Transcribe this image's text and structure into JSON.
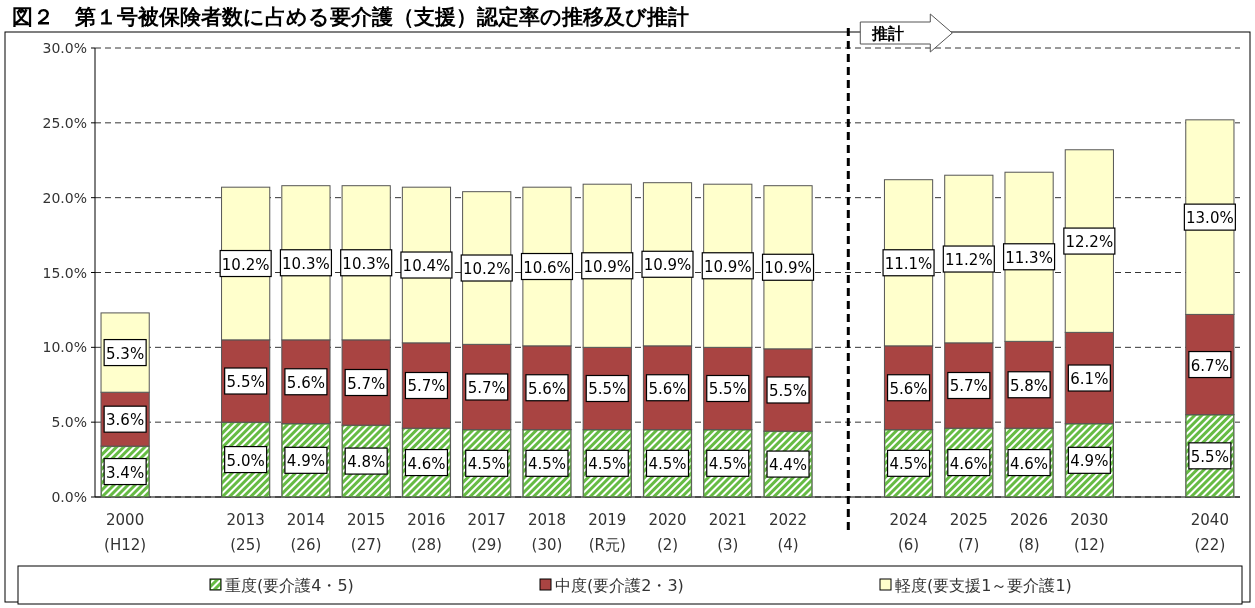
{
  "chart_data": {
    "type": "bar",
    "stacked": true,
    "title": "図２　第１号被保険者数に占める要介護（支援）認定率の推移及び推計",
    "categories": [
      "2000\n(H12)",
      null,
      "2013\n(25)",
      "2014\n(26)",
      "2015\n(27)",
      "2016\n(28)",
      "2017\n(29)",
      "2018\n(30)",
      "2019\n(R元)",
      "2020\n(2)",
      "2021\n(3)",
      "2022\n(4)",
      null,
      "2024\n(6)",
      "2025\n(7)",
      "2026\n(8)",
      "2030\n(12)",
      null,
      "2040\n(22)"
    ],
    "series": [
      {
        "name": "重度(要介護4・5)",
        "color": "#66bb44",
        "values": [
          3.4,
          null,
          5.0,
          4.9,
          4.8,
          4.6,
          4.5,
          4.5,
          4.5,
          4.5,
          4.5,
          4.4,
          null,
          4.5,
          4.6,
          4.6,
          4.9,
          null,
          5.5
        ],
        "value_labels": [
          "3.4%",
          null,
          "5.0%",
          "4.9%",
          "4.8%",
          "4.6%",
          "4.5%",
          "4.5%",
          "4.5%",
          "4.5%",
          "4.5%",
          "4.4%",
          null,
          "4.5%",
          "4.6%",
          "4.6%",
          "4.9%",
          null,
          "5.5%"
        ]
      },
      {
        "name": "中度(要介護2・3)",
        "color": "#a94442",
        "values": [
          3.6,
          null,
          5.5,
          5.6,
          5.7,
          5.7,
          5.7,
          5.6,
          5.5,
          5.6,
          5.5,
          5.5,
          null,
          5.6,
          5.7,
          5.8,
          6.1,
          null,
          6.7
        ],
        "value_labels": [
          "3.6%",
          null,
          "5.5%",
          "5.6%",
          "5.7%",
          "5.7%",
          "5.7%",
          "5.6%",
          "5.5%",
          "5.6%",
          "5.5%",
          "5.5%",
          null,
          "5.6%",
          "5.7%",
          "5.8%",
          "6.1%",
          null,
          "6.7%"
        ]
      },
      {
        "name": "軽度(要支援1～要介護1)",
        "color": "#ffffcc",
        "values": [
          5.3,
          null,
          10.2,
          10.3,
          10.3,
          10.4,
          10.2,
          10.6,
          10.9,
          10.9,
          10.9,
          10.9,
          null,
          11.1,
          11.2,
          11.3,
          12.2,
          null,
          13.0
        ],
        "value_labels": [
          "5.3%",
          null,
          "10.2%",
          "10.3%",
          "10.3%",
          "10.4%",
          "10.2%",
          "10.6%",
          "10.9%",
          "10.9%",
          "10.9%",
          "10.9%",
          null,
          "11.1%",
          "11.2%",
          "11.3%",
          "12.2%",
          null,
          "13.0%"
        ]
      }
    ],
    "ylim": [
      0,
      30
    ],
    "yticks": [
      {
        "value": 0,
        "label": "0.0%"
      },
      {
        "value": 5,
        "label": "5.0%"
      },
      {
        "value": 10,
        "label": "10.0%"
      },
      {
        "value": 15,
        "label": "15.0%"
      },
      {
        "value": 20,
        "label": "20.0%"
      },
      {
        "value": 25,
        "label": "25.0%"
      },
      {
        "value": 30,
        "label": "30.0%"
      }
    ],
    "grid": "y",
    "legend": "bottom",
    "annotations": [
      "推計"
    ]
  }
}
